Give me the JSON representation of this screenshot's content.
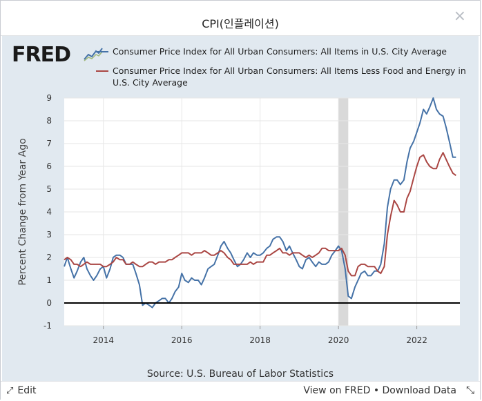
{
  "dialog": {
    "title": "CPI(인플레이션)",
    "close_icon": "×"
  },
  "fred": {
    "logo_text": "FRED",
    "logo_mark": "chart-spark-icon"
  },
  "footer": {
    "edit_label": "Edit",
    "view_label": "View on FRED",
    "separator": "•",
    "download_label": "Download Data"
  },
  "chart_data": {
    "type": "line",
    "ylabel": "Percent Change from Year Ago",
    "source": "Source: U.S. Bureau of Labor Statistics",
    "xlim": [
      2013.0,
      2023.1
    ],
    "ylim": [
      -1,
      9
    ],
    "x_ticks": [
      2014,
      2016,
      2018,
      2020,
      2022
    ],
    "x_tick_labels": [
      "2014",
      "2016",
      "2018",
      "2020",
      "2022"
    ],
    "y_ticks": [
      -1,
      0,
      1,
      2,
      3,
      4,
      5,
      6,
      7,
      8,
      9
    ],
    "y_tick_labels": [
      "-1",
      "0",
      "1",
      "2",
      "3",
      "4",
      "5",
      "6",
      "7",
      "8",
      "9"
    ],
    "grid": true,
    "legend_position": "top",
    "zero_line": true,
    "recession_band": [
      2020.0,
      2020.25
    ],
    "colors": {
      "series1": "#4572a7",
      "series2": "#aa4643",
      "recession": "#d9d9d9",
      "plot_bg": "#ffffff",
      "panel_bg": "#e1e9f0"
    },
    "series": [
      {
        "name": "Consumer Price Index for All Urban Consumers: All Items in U.S. City Average",
        "color": "#4572a7",
        "points": [
          [
            2013.0,
            1.6
          ],
          [
            2013.08,
            2.0
          ],
          [
            2013.17,
            1.5
          ],
          [
            2013.25,
            1.1
          ],
          [
            2013.33,
            1.4
          ],
          [
            2013.42,
            1.8
          ],
          [
            2013.5,
            2.0
          ],
          [
            2013.58,
            1.5
          ],
          [
            2013.67,
            1.2
          ],
          [
            2013.75,
            1.0
          ],
          [
            2013.83,
            1.2
          ],
          [
            2013.92,
            1.5
          ],
          [
            2014.0,
            1.6
          ],
          [
            2014.08,
            1.1
          ],
          [
            2014.17,
            1.5
          ],
          [
            2014.25,
            2.0
          ],
          [
            2014.33,
            2.1
          ],
          [
            2014.42,
            2.1
          ],
          [
            2014.5,
            2.0
          ],
          [
            2014.58,
            1.7
          ],
          [
            2014.67,
            1.7
          ],
          [
            2014.75,
            1.7
          ],
          [
            2014.83,
            1.3
          ],
          [
            2014.92,
            0.8
          ],
          [
            2015.0,
            -0.1
          ],
          [
            2015.08,
            0.0
          ],
          [
            2015.17,
            -0.1
          ],
          [
            2015.25,
            -0.2
          ],
          [
            2015.33,
            0.0
          ],
          [
            2015.42,
            0.1
          ],
          [
            2015.5,
            0.2
          ],
          [
            2015.58,
            0.2
          ],
          [
            2015.67,
            0.0
          ],
          [
            2015.75,
            0.2
          ],
          [
            2015.83,
            0.5
          ],
          [
            2015.92,
            0.7
          ],
          [
            2016.0,
            1.3
          ],
          [
            2016.08,
            1.0
          ],
          [
            2016.17,
            0.9
          ],
          [
            2016.25,
            1.1
          ],
          [
            2016.33,
            1.0
          ],
          [
            2016.42,
            1.0
          ],
          [
            2016.5,
            0.8
          ],
          [
            2016.58,
            1.1
          ],
          [
            2016.67,
            1.5
          ],
          [
            2016.75,
            1.6
          ],
          [
            2016.83,
            1.7
          ],
          [
            2016.92,
            2.1
          ],
          [
            2017.0,
            2.5
          ],
          [
            2017.08,
            2.7
          ],
          [
            2017.17,
            2.4
          ],
          [
            2017.25,
            2.2
          ],
          [
            2017.33,
            1.9
          ],
          [
            2017.42,
            1.6
          ],
          [
            2017.5,
            1.7
          ],
          [
            2017.58,
            1.9
          ],
          [
            2017.67,
            2.2
          ],
          [
            2017.75,
            2.0
          ],
          [
            2017.83,
            2.2
          ],
          [
            2017.92,
            2.1
          ],
          [
            2018.0,
            2.1
          ],
          [
            2018.08,
            2.2
          ],
          [
            2018.17,
            2.4
          ],
          [
            2018.25,
            2.5
          ],
          [
            2018.33,
            2.8
          ],
          [
            2018.42,
            2.9
          ],
          [
            2018.5,
            2.9
          ],
          [
            2018.58,
            2.7
          ],
          [
            2018.67,
            2.3
          ],
          [
            2018.75,
            2.5
          ],
          [
            2018.83,
            2.2
          ],
          [
            2018.92,
            1.9
          ],
          [
            2019.0,
            1.6
          ],
          [
            2019.08,
            1.5
          ],
          [
            2019.17,
            1.9
          ],
          [
            2019.25,
            2.0
          ],
          [
            2019.33,
            1.8
          ],
          [
            2019.42,
            1.6
          ],
          [
            2019.5,
            1.8
          ],
          [
            2019.58,
            1.7
          ],
          [
            2019.67,
            1.7
          ],
          [
            2019.75,
            1.8
          ],
          [
            2019.83,
            2.1
          ],
          [
            2019.92,
            2.3
          ],
          [
            2020.0,
            2.5
          ],
          [
            2020.08,
            2.3
          ],
          [
            2020.17,
            1.5
          ],
          [
            2020.25,
            0.3
          ],
          [
            2020.33,
            0.2
          ],
          [
            2020.42,
            0.7
          ],
          [
            2020.5,
            1.0
          ],
          [
            2020.58,
            1.3
          ],
          [
            2020.67,
            1.4
          ],
          [
            2020.75,
            1.2
          ],
          [
            2020.83,
            1.2
          ],
          [
            2020.92,
            1.4
          ],
          [
            2021.0,
            1.4
          ],
          [
            2021.08,
            1.7
          ],
          [
            2021.17,
            2.6
          ],
          [
            2021.25,
            4.2
          ],
          [
            2021.33,
            5.0
          ],
          [
            2021.42,
            5.4
          ],
          [
            2021.5,
            5.4
          ],
          [
            2021.58,
            5.2
          ],
          [
            2021.67,
            5.4
          ],
          [
            2021.75,
            6.2
          ],
          [
            2021.83,
            6.8
          ],
          [
            2021.92,
            7.1
          ],
          [
            2022.0,
            7.5
          ],
          [
            2022.08,
            7.9
          ],
          [
            2022.17,
            8.5
          ],
          [
            2022.25,
            8.3
          ],
          [
            2022.33,
            8.6
          ],
          [
            2022.42,
            9.0
          ],
          [
            2022.5,
            8.5
          ],
          [
            2022.58,
            8.3
          ],
          [
            2022.67,
            8.2
          ],
          [
            2022.75,
            7.7
          ],
          [
            2022.83,
            7.1
          ],
          [
            2022.92,
            6.4
          ],
          [
            2023.0,
            6.4
          ]
        ]
      },
      {
        "name": "Consumer Price Index for All Urban Consumers: All Items Less Food and Energy in U.S. City Average",
        "color": "#aa4643",
        "points": [
          [
            2013.0,
            1.9
          ],
          [
            2013.08,
            2.0
          ],
          [
            2013.17,
            1.9
          ],
          [
            2013.25,
            1.7
          ],
          [
            2013.33,
            1.7
          ],
          [
            2013.42,
            1.6
          ],
          [
            2013.5,
            1.7
          ],
          [
            2013.58,
            1.8
          ],
          [
            2013.67,
            1.7
          ],
          [
            2013.75,
            1.7
          ],
          [
            2013.83,
            1.7
          ],
          [
            2013.92,
            1.7
          ],
          [
            2014.0,
            1.6
          ],
          [
            2014.08,
            1.6
          ],
          [
            2014.17,
            1.7
          ],
          [
            2014.25,
            1.8
          ],
          [
            2014.33,
            2.0
          ],
          [
            2014.42,
            1.9
          ],
          [
            2014.5,
            1.9
          ],
          [
            2014.58,
            1.7
          ],
          [
            2014.67,
            1.7
          ],
          [
            2014.75,
            1.8
          ],
          [
            2014.83,
            1.7
          ],
          [
            2014.92,
            1.6
          ],
          [
            2015.0,
            1.6
          ],
          [
            2015.08,
            1.7
          ],
          [
            2015.17,
            1.8
          ],
          [
            2015.25,
            1.8
          ],
          [
            2015.33,
            1.7
          ],
          [
            2015.42,
            1.8
          ],
          [
            2015.5,
            1.8
          ],
          [
            2015.58,
            1.8
          ],
          [
            2015.67,
            1.9
          ],
          [
            2015.75,
            1.9
          ],
          [
            2015.83,
            2.0
          ],
          [
            2015.92,
            2.1
          ],
          [
            2016.0,
            2.2
          ],
          [
            2016.08,
            2.2
          ],
          [
            2016.17,
            2.2
          ],
          [
            2016.25,
            2.1
          ],
          [
            2016.33,
            2.2
          ],
          [
            2016.42,
            2.2
          ],
          [
            2016.5,
            2.2
          ],
          [
            2016.58,
            2.3
          ],
          [
            2016.67,
            2.2
          ],
          [
            2016.75,
            2.1
          ],
          [
            2016.83,
            2.1
          ],
          [
            2016.92,
            2.2
          ],
          [
            2017.0,
            2.3
          ],
          [
            2017.08,
            2.2
          ],
          [
            2017.17,
            2.0
          ],
          [
            2017.25,
            1.9
          ],
          [
            2017.33,
            1.7
          ],
          [
            2017.42,
            1.7
          ],
          [
            2017.5,
            1.7
          ],
          [
            2017.58,
            1.7
          ],
          [
            2017.67,
            1.7
          ],
          [
            2017.75,
            1.8
          ],
          [
            2017.83,
            1.7
          ],
          [
            2017.92,
            1.8
          ],
          [
            2018.0,
            1.8
          ],
          [
            2018.08,
            1.8
          ],
          [
            2018.17,
            2.1
          ],
          [
            2018.25,
            2.1
          ],
          [
            2018.33,
            2.2
          ],
          [
            2018.42,
            2.3
          ],
          [
            2018.5,
            2.4
          ],
          [
            2018.58,
            2.2
          ],
          [
            2018.67,
            2.2
          ],
          [
            2018.75,
            2.1
          ],
          [
            2018.83,
            2.2
          ],
          [
            2018.92,
            2.2
          ],
          [
            2019.0,
            2.2
          ],
          [
            2019.08,
            2.1
          ],
          [
            2019.17,
            2.0
          ],
          [
            2019.25,
            2.1
          ],
          [
            2019.33,
            2.0
          ],
          [
            2019.42,
            2.1
          ],
          [
            2019.5,
            2.2
          ],
          [
            2019.58,
            2.4
          ],
          [
            2019.67,
            2.4
          ],
          [
            2019.75,
            2.3
          ],
          [
            2019.83,
            2.3
          ],
          [
            2019.92,
            2.3
          ],
          [
            2020.0,
            2.3
          ],
          [
            2020.08,
            2.4
          ],
          [
            2020.17,
            2.1
          ],
          [
            2020.25,
            1.4
          ],
          [
            2020.33,
            1.2
          ],
          [
            2020.42,
            1.2
          ],
          [
            2020.5,
            1.6
          ],
          [
            2020.58,
            1.7
          ],
          [
            2020.67,
            1.7
          ],
          [
            2020.75,
            1.6
          ],
          [
            2020.83,
            1.6
          ],
          [
            2020.92,
            1.6
          ],
          [
            2021.0,
            1.4
          ],
          [
            2021.08,
            1.3
          ],
          [
            2021.17,
            1.6
          ],
          [
            2021.25,
            3.0
          ],
          [
            2021.33,
            3.8
          ],
          [
            2021.42,
            4.5
          ],
          [
            2021.5,
            4.3
          ],
          [
            2021.58,
            4.0
          ],
          [
            2021.67,
            4.0
          ],
          [
            2021.75,
            4.6
          ],
          [
            2021.83,
            4.9
          ],
          [
            2021.92,
            5.5
          ],
          [
            2022.0,
            6.0
          ],
          [
            2022.08,
            6.4
          ],
          [
            2022.17,
            6.5
          ],
          [
            2022.25,
            6.2
          ],
          [
            2022.33,
            6.0
          ],
          [
            2022.42,
            5.9
          ],
          [
            2022.5,
            5.9
          ],
          [
            2022.58,
            6.3
          ],
          [
            2022.67,
            6.6
          ],
          [
            2022.75,
            6.3
          ],
          [
            2022.83,
            6.0
          ],
          [
            2022.92,
            5.7
          ],
          [
            2023.0,
            5.6
          ]
        ]
      }
    ]
  }
}
